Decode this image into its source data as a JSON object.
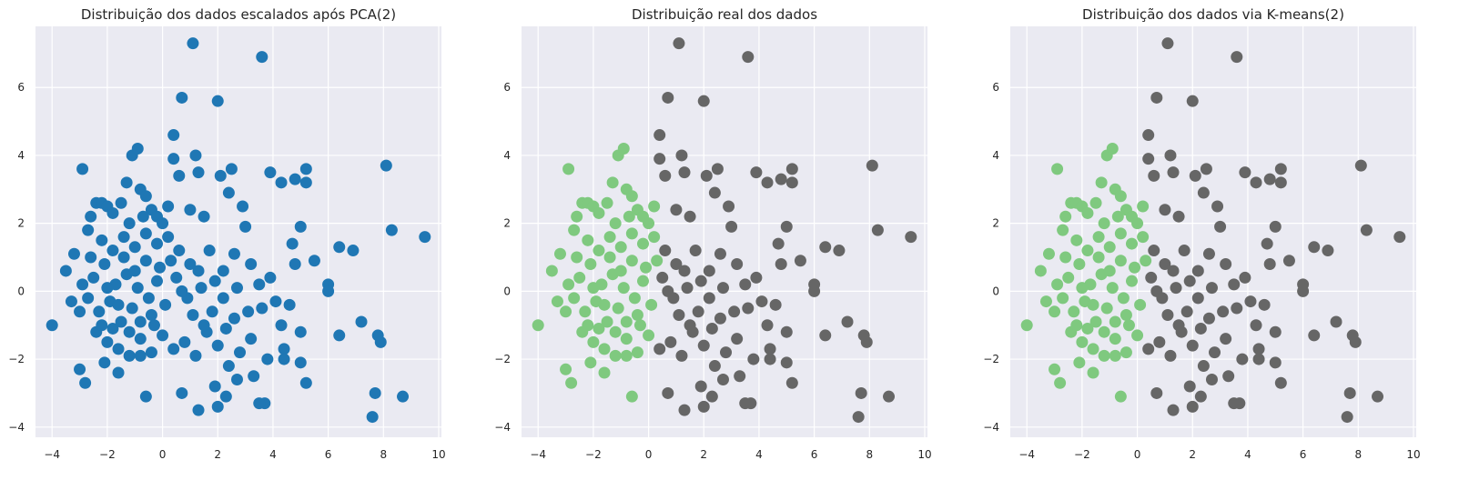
{
  "chart_data": [
    {
      "type": "scatter",
      "title": "Distribuição dos dados escalados após PCA(2)",
      "xlim": [
        -4.6,
        10.1
      ],
      "ylim": [
        -4.3,
        7.8
      ],
      "xticks": [
        -4,
        -2,
        0,
        2,
        4,
        6,
        8,
        10
      ],
      "yticks": [
        -4,
        -2,
        0,
        2,
        4,
        6
      ],
      "grid": true,
      "colors": {
        "single": "#1f77b4"
      }
    },
    {
      "type": "scatter",
      "title": "Distribuição real dos dados",
      "xlim": [
        -4.6,
        10.1
      ],
      "ylim": [
        -4.3,
        7.8
      ],
      "xticks": [
        -4,
        -2,
        0,
        2,
        4,
        6,
        8,
        10
      ],
      "yticks": [
        -4,
        -2,
        0,
        2,
        4,
        6
      ],
      "grid": true,
      "colors": {
        "class_0": "#7fc97f",
        "class_1": "#666666"
      }
    },
    {
      "type": "scatter",
      "title": "Distribuição dos dados via K-means(2)",
      "xlim": [
        -4.6,
        10.1
      ],
      "ylim": [
        -4.3,
        7.8
      ],
      "xticks": [
        -4,
        -2,
        0,
        2,
        4,
        6,
        8,
        10
      ],
      "yticks": [
        -4,
        -2,
        0,
        2,
        4,
        6
      ],
      "grid": true,
      "colors": {
        "class_0": "#7fc97f",
        "class_1": "#666666"
      }
    }
  ],
  "points": [
    [
      -4.0,
      -1.0
    ],
    [
      -3.5,
      0.6
    ],
    [
      -3.3,
      -0.3
    ],
    [
      -3.0,
      -2.3
    ],
    [
      -2.8,
      -2.7
    ],
    [
      -2.9,
      3.6
    ],
    [
      -3.2,
      1.1
    ],
    [
      -2.7,
      1.8
    ],
    [
      -2.6,
      2.2
    ],
    [
      -2.4,
      2.6
    ],
    [
      -2.2,
      2.6
    ],
    [
      -2.0,
      2.5
    ],
    [
      -1.8,
      2.3
    ],
    [
      -1.5,
      2.6
    ],
    [
      -1.3,
      3.2
    ],
    [
      -1.1,
      4.0
    ],
    [
      -0.9,
      4.2
    ],
    [
      -0.8,
      3.0
    ],
    [
      -0.6,
      2.8
    ],
    [
      -0.4,
      2.4
    ],
    [
      -0.2,
      2.2
    ],
    [
      0.0,
      2.0
    ],
    [
      0.2,
      2.5
    ],
    [
      0.4,
      3.9
    ],
    [
      0.4,
      4.6
    ],
    [
      0.6,
      3.4
    ],
    [
      0.7,
      5.7
    ],
    [
      1.1,
      7.3
    ],
    [
      1.2,
      4.0
    ],
    [
      1.3,
      3.5
    ],
    [
      2.0,
      5.6
    ],
    [
      3.6,
      6.9
    ],
    [
      2.1,
      3.4
    ],
    [
      2.5,
      3.6
    ],
    [
      1.0,
      2.4
    ],
    [
      1.5,
      2.2
    ],
    [
      2.4,
      2.9
    ],
    [
      2.9,
      2.5
    ],
    [
      3.0,
      1.9
    ],
    [
      3.9,
      3.5
    ],
    [
      4.3,
      3.2
    ],
    [
      4.8,
      3.3
    ],
    [
      5.2,
      3.6
    ],
    [
      5.2,
      3.2
    ],
    [
      5.0,
      1.9
    ],
    [
      4.7,
      1.4
    ],
    [
      4.8,
      0.8
    ],
    [
      5.5,
      0.9
    ],
    [
      6.4,
      1.3
    ],
    [
      6.9,
      1.2
    ],
    [
      8.1,
      3.7
    ],
    [
      8.3,
      1.8
    ],
    [
      9.5,
      1.6
    ],
    [
      6.0,
      0.2
    ],
    [
      6.0,
      0.0
    ],
    [
      7.2,
      -0.9
    ],
    [
      6.4,
      -1.3
    ],
    [
      7.8,
      -1.3
    ],
    [
      7.9,
      -1.5
    ],
    [
      5.0,
      -1.2
    ],
    [
      5.0,
      -2.1
    ],
    [
      4.4,
      -1.7
    ],
    [
      4.4,
      -2.0
    ],
    [
      5.2,
      -2.7
    ],
    [
      7.7,
      -3.0
    ],
    [
      8.7,
      -3.1
    ],
    [
      7.6,
      -3.7
    ],
    [
      3.7,
      -3.3
    ],
    [
      3.5,
      -3.3
    ],
    [
      2.3,
      -3.1
    ],
    [
      1.3,
      -3.5
    ],
    [
      2.0,
      -3.4
    ],
    [
      0.7,
      -3.0
    ],
    [
      -0.6,
      -3.1
    ],
    [
      -1.6,
      -2.4
    ],
    [
      -2.1,
      -2.1
    ],
    [
      -0.8,
      -1.9
    ],
    [
      1.9,
      -2.8
    ],
    [
      2.7,
      -2.6
    ],
    [
      3.3,
      -2.5
    ],
    [
      3.8,
      -2.0
    ],
    [
      3.6,
      -0.5
    ],
    [
      4.1,
      -0.3
    ],
    [
      4.3,
      -1.0
    ],
    [
      4.6,
      -0.4
    ],
    [
      3.9,
      0.4
    ],
    [
      3.2,
      0.8
    ],
    [
      2.6,
      1.1
    ],
    [
      2.2,
      0.6
    ],
    [
      1.7,
      1.2
    ],
    [
      1.3,
      0.6
    ],
    [
      0.9,
      -0.2
    ],
    [
      0.5,
      0.4
    ],
    [
      0.1,
      -0.4
    ],
    [
      -0.2,
      0.3
    ],
    [
      -0.4,
      -0.7
    ],
    [
      -0.6,
      0.9
    ],
    [
      -0.9,
      0.1
    ],
    [
      -1.1,
      -0.5
    ],
    [
      -1.3,
      0.5
    ],
    [
      -1.5,
      -0.9
    ],
    [
      -1.7,
      0.2
    ],
    [
      -1.9,
      -0.3
    ],
    [
      -2.1,
      0.8
    ],
    [
      -2.3,
      -0.6
    ],
    [
      -2.5,
      0.4
    ],
    [
      -2.7,
      -0.2
    ],
    [
      -2.9,
      0.2
    ],
    [
      -2.4,
      -1.2
    ],
    [
      -2.0,
      -1.5
    ],
    [
      -1.6,
      -1.7
    ],
    [
      -1.2,
      -1.9
    ],
    [
      -0.8,
      -1.4
    ],
    [
      -0.4,
      -1.8
    ],
    [
      0.0,
      -1.3
    ],
    [
      0.4,
      -1.7
    ],
    [
      0.8,
      -1.5
    ],
    [
      1.2,
      -1.9
    ],
    [
      1.6,
      -1.2
    ],
    [
      2.0,
      -1.6
    ],
    [
      2.4,
      -2.2
    ],
    [
      2.8,
      -1.8
    ],
    [
      3.2,
      -1.4
    ],
    [
      2.6,
      -0.8
    ],
    [
      2.2,
      -0.2
    ],
    [
      1.8,
      -0.6
    ],
    [
      1.4,
      0.1
    ],
    [
      1.0,
      0.8
    ],
    [
      0.6,
      1.2
    ],
    [
      0.2,
      1.6
    ],
    [
      -0.2,
      1.4
    ],
    [
      -0.6,
      1.7
    ],
    [
      -1.0,
      1.3
    ],
    [
      -1.4,
      1.6
    ],
    [
      -1.8,
      1.2
    ],
    [
      -2.2,
      1.5
    ],
    [
      -1.2,
      2.0
    ],
    [
      -0.7,
      2.2
    ],
    [
      0.3,
      0.9
    ],
    [
      0.7,
      0.0
    ],
    [
      1.1,
      -0.7
    ],
    [
      1.5,
      -1.0
    ],
    [
      1.9,
      0.3
    ],
    [
      2.3,
      -1.1
    ],
    [
      2.7,
      0.1
    ],
    [
      3.1,
      -0.6
    ],
    [
      3.5,
      0.2
    ],
    [
      -1.0,
      0.6
    ],
    [
      -1.6,
      -0.4
    ],
    [
      -2.0,
      0.1
    ],
    [
      -0.5,
      -0.2
    ],
    [
      -0.1,
      0.7
    ],
    [
      -0.8,
      -0.9
    ],
    [
      -1.4,
      1.0
    ],
    [
      -2.6,
      1.0
    ],
    [
      -3.0,
      -0.6
    ],
    [
      -2.2,
      -1.0
    ],
    [
      -1.8,
      -1.1
    ],
    [
      -1.2,
      -1.2
    ],
    [
      -0.3,
      -1.0
    ]
  ]
}
